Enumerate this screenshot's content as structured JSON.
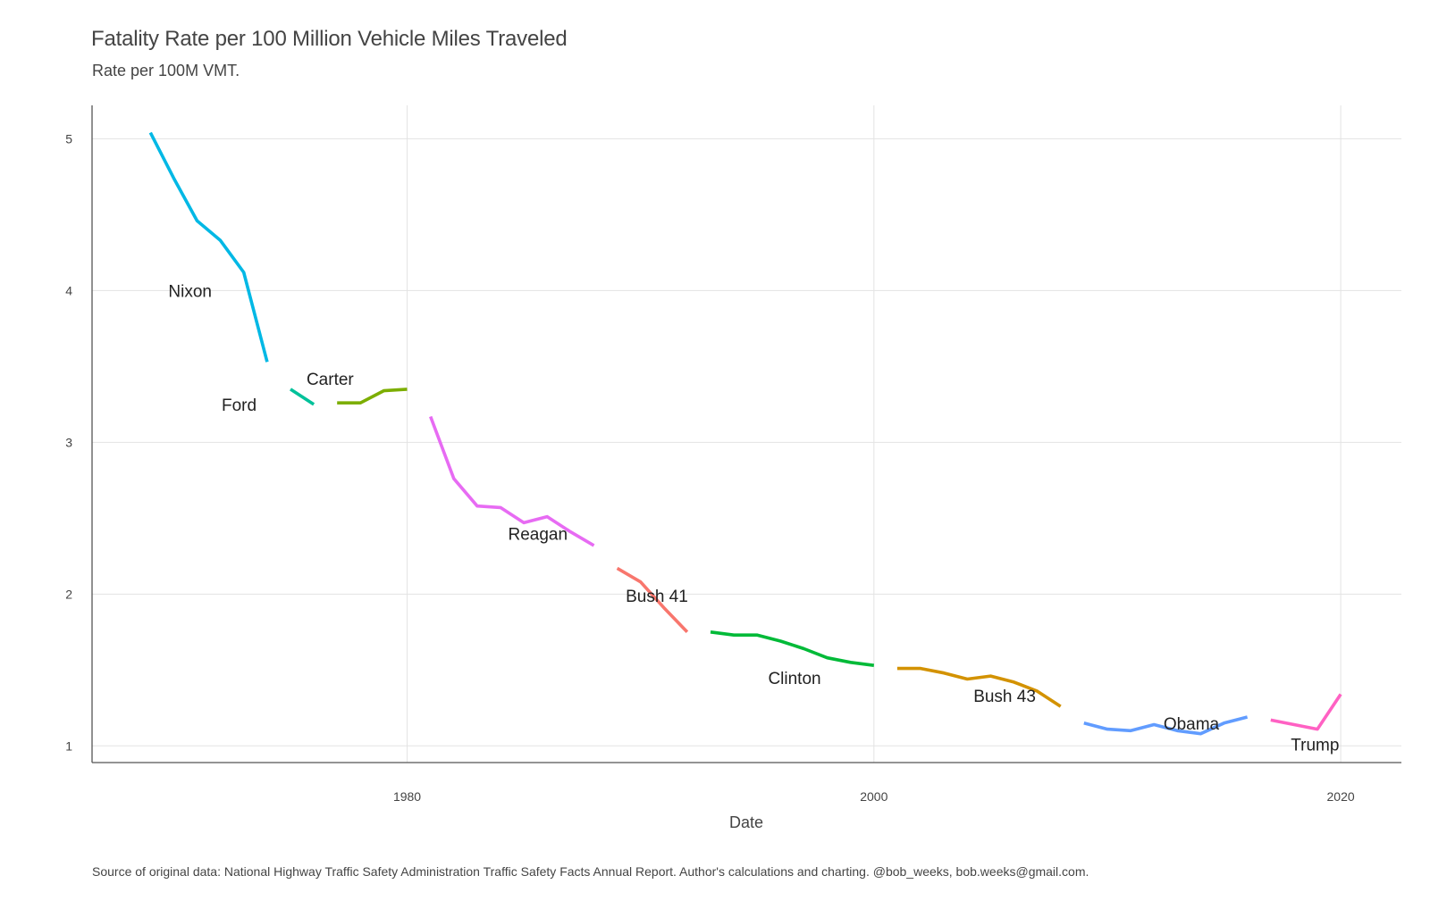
{
  "chart_data": {
    "type": "line",
    "title": "Fatality Rate per 100 Million Vehicle Miles Traveled",
    "subtitle": "Rate per 100M VMT.",
    "xlabel": "Date",
    "ylabel": "",
    "caption": "Source of original data: National Highway Traffic Safety Administration Traffic Safety Facts Annual Report. Author's calculations and charting. @bob_weeks, bob.weeks@gmail.com.",
    "xlim": [
      1966.5,
      2022.6
    ],
    "ylim": [
      0.89,
      5.22
    ],
    "x_ticks": [
      1980,
      2000,
      2020
    ],
    "y_ticks": [
      1,
      2,
      3,
      4,
      5
    ],
    "grid": true,
    "legend": "none",
    "series": [
      {
        "name": "Nixon",
        "color": "#00B8E5",
        "x": [
          1969,
          1970,
          1971,
          1972,
          1973,
          1974
        ],
        "y": [
          5.04,
          4.74,
          4.46,
          4.33,
          4.12,
          3.53
        ],
        "label_at": [
          1970.7,
          4.0
        ]
      },
      {
        "name": "Ford",
        "color": "#00C19A",
        "x": [
          1975,
          1976
        ],
        "y": [
          3.35,
          3.25
        ],
        "label_at": [
          1972.8,
          3.25
        ]
      },
      {
        "name": "Carter",
        "color": "#7CAE00",
        "x": [
          1977,
          1978,
          1979,
          1980
        ],
        "y": [
          3.26,
          3.26,
          3.34,
          3.35
        ],
        "label_at": [
          1976.7,
          3.42
        ]
      },
      {
        "name": "Reagan",
        "color": "#E76BF3",
        "x": [
          1981,
          1982,
          1983,
          1984,
          1985,
          1986,
          1987,
          1988
        ],
        "y": [
          3.17,
          2.76,
          2.58,
          2.57,
          2.47,
          2.51,
          2.41,
          2.32
        ],
        "label_at": [
          1985.6,
          2.4
        ]
      },
      {
        "name": "Bush 41",
        "color": "#F8766D",
        "x": [
          1989,
          1990,
          1991,
          1992
        ],
        "y": [
          2.17,
          2.08,
          1.91,
          1.75
        ],
        "label_at": [
          1990.7,
          1.99
        ]
      },
      {
        "name": "Clinton",
        "color": "#00BA38",
        "x": [
          1993,
          1994,
          1995,
          1996,
          1997,
          1998,
          1999,
          2000
        ],
        "y": [
          1.75,
          1.73,
          1.73,
          1.69,
          1.64,
          1.58,
          1.55,
          1.53
        ],
        "label_at": [
          1996.6,
          1.45
        ]
      },
      {
        "name": "Bush 43",
        "color": "#D39200",
        "x": [
          2001,
          2002,
          2003,
          2004,
          2005,
          2006,
          2007,
          2008
        ],
        "y": [
          1.51,
          1.51,
          1.48,
          1.44,
          1.46,
          1.42,
          1.36,
          1.26
        ],
        "label_at": [
          2005.6,
          1.33
        ]
      },
      {
        "name": "Obama",
        "color": "#619CFF",
        "x": [
          2009,
          2010,
          2011,
          2012,
          2013,
          2014,
          2015,
          2016
        ],
        "y": [
          1.15,
          1.11,
          1.1,
          1.14,
          1.1,
          1.08,
          1.15,
          1.19
        ],
        "label_at": [
          2013.6,
          1.15
        ]
      },
      {
        "name": "Trump",
        "color": "#FF61C3",
        "x": [
          2017,
          2018,
          2019,
          2020
        ],
        "y": [
          1.17,
          1.14,
          1.11,
          1.34
        ],
        "label_at": [
          2018.9,
          1.01
        ]
      }
    ]
  }
}
